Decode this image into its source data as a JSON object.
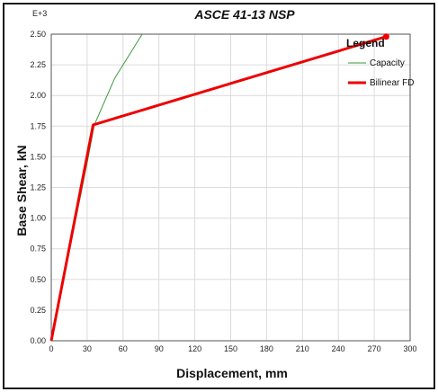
{
  "chart_data": {
    "type": "line",
    "title": "ASCE 41-13 NSP",
    "xlabel": "Displacement, mm",
    "ylabel": "Base Shear, kN",
    "y_exponent_label": "E+3",
    "xlim": [
      0,
      300
    ],
    "ylim": [
      0,
      2.5
    ],
    "x_ticks": [
      0,
      30,
      60,
      90,
      120,
      150,
      180,
      210,
      240,
      270,
      300
    ],
    "y_ticks": [
      "0.00",
      "0.25",
      "0.50",
      "0.75",
      "1.00",
      "1.25",
      "1.50",
      "1.75",
      "2.00",
      "2.25",
      "2.50"
    ],
    "grid": true,
    "legend": {
      "title": "Legend",
      "position": "top-right"
    },
    "series": [
      {
        "name": "Capacity",
        "color": "#3a9a3a",
        "points": [
          [
            0,
            0
          ],
          [
            30,
            1.45
          ],
          [
            36,
            1.76
          ],
          [
            53,
            2.14
          ],
          [
            76,
            2.5
          ]
        ]
      },
      {
        "name": "Bilinear FD",
        "color": "#ee0000",
        "points": [
          [
            0,
            0
          ],
          [
            35,
            1.76
          ],
          [
            280,
            2.48
          ]
        ],
        "end_marker": true
      }
    ]
  }
}
